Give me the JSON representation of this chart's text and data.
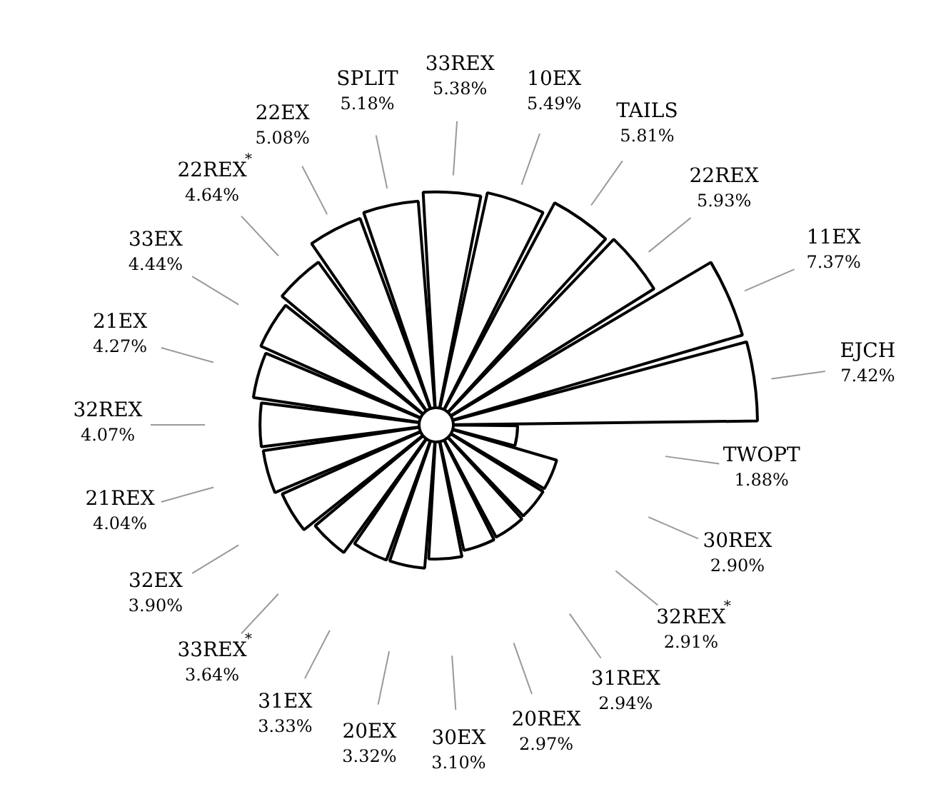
{
  "chart_data": {
    "type": "other",
    "categories": [
      "EJCH",
      "TWOPT",
      "30REX",
      "32REX$^{*}$",
      "31REX",
      "20REX",
      "30EX",
      "20EX",
      "31EX",
      "33REX$^{*}$",
      "32EX",
      "21REX",
      "32REX",
      "21EX",
      "33EX",
      "22REX$^{*}$",
      "22EX",
      "SPLIT",
      "33REX",
      "10EX",
      "TAILS",
      "22REX",
      "11EX"
    ],
    "values": [
      7.42,
      1.88,
      2.9,
      2.91,
      2.94,
      2.97,
      3.1,
      3.32,
      3.33,
      3.64,
      3.9,
      4.04,
      4.07,
      4.27,
      4.44,
      4.64,
      5.08,
      5.18,
      5.38,
      5.49,
      5.81,
      5.93,
      7.37
    ],
    "value_labels": [
      "7.42%",
      "1.88%",
      "2.90%",
      "2.91%",
      "2.94%",
      "2.97%",
      "3.10%",
      "3.32%",
      "3.33%",
      "3.64%",
      "3.90%",
      "4.04%",
      "4.07%",
      "4.27%",
      "4.44%",
      "4.64%",
      "5.08%",
      "5.18%",
      "5.38%",
      "5.49%",
      "5.81%",
      "5.93%",
      "7.37%"
    ]
  }
}
